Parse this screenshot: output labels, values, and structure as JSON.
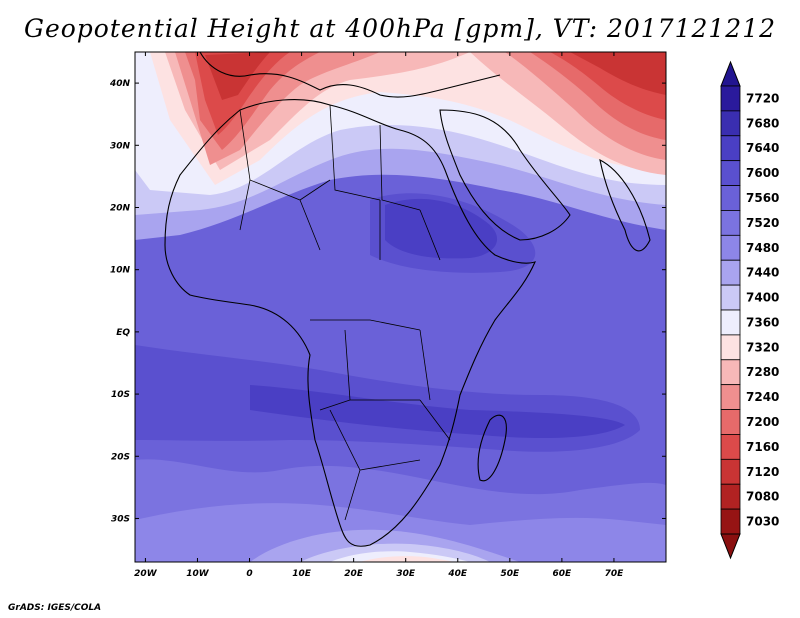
{
  "title": "Geopotential Height at 400hPa [gpm], VT: 2017121212",
  "credit": "GrADS: IGES/COLA",
  "map": {
    "lat_labels": [
      "40N",
      "30N",
      "20N",
      "10N",
      "EQ",
      "10S",
      "20S",
      "30S"
    ],
    "lat_values": [
      40,
      30,
      20,
      10,
      0,
      -10,
      -20,
      -30
    ],
    "lon_labels": [
      "20W",
      "10W",
      "0",
      "10E",
      "20E",
      "30E",
      "40E",
      "50E",
      "60E",
      "70E"
    ],
    "lon_values": [
      -20,
      -10,
      0,
      10,
      20,
      30,
      40,
      50,
      60,
      70
    ],
    "lon_range": [
      -22,
      80
    ],
    "lat_range": [
      -37,
      45
    ]
  },
  "colorbar": {
    "levels": [
      "7720",
      "7680",
      "7640",
      "7600",
      "7560",
      "7520",
      "7480",
      "7440",
      "7400",
      "7360",
      "7320",
      "7280",
      "7240",
      "7200",
      "7160",
      "7120",
      "7080",
      "7030"
    ],
    "colors": [
      "#2a1a9c",
      "#3a2eb0",
      "#4a3fc4",
      "#5a50cf",
      "#6a61d8",
      "#7b73e0",
      "#8d86e8",
      "#a9a4ef",
      "#cbc9f6",
      "#eeeefd",
      "#fde2e2",
      "#f7b8b8",
      "#ef8f8f",
      "#e66a6a",
      "#dc4a4a",
      "#c93434",
      "#b12222",
      "#961414"
    ],
    "top_arrow_color": "#221590",
    "bottom_arrow_color": "#8a1010"
  }
}
